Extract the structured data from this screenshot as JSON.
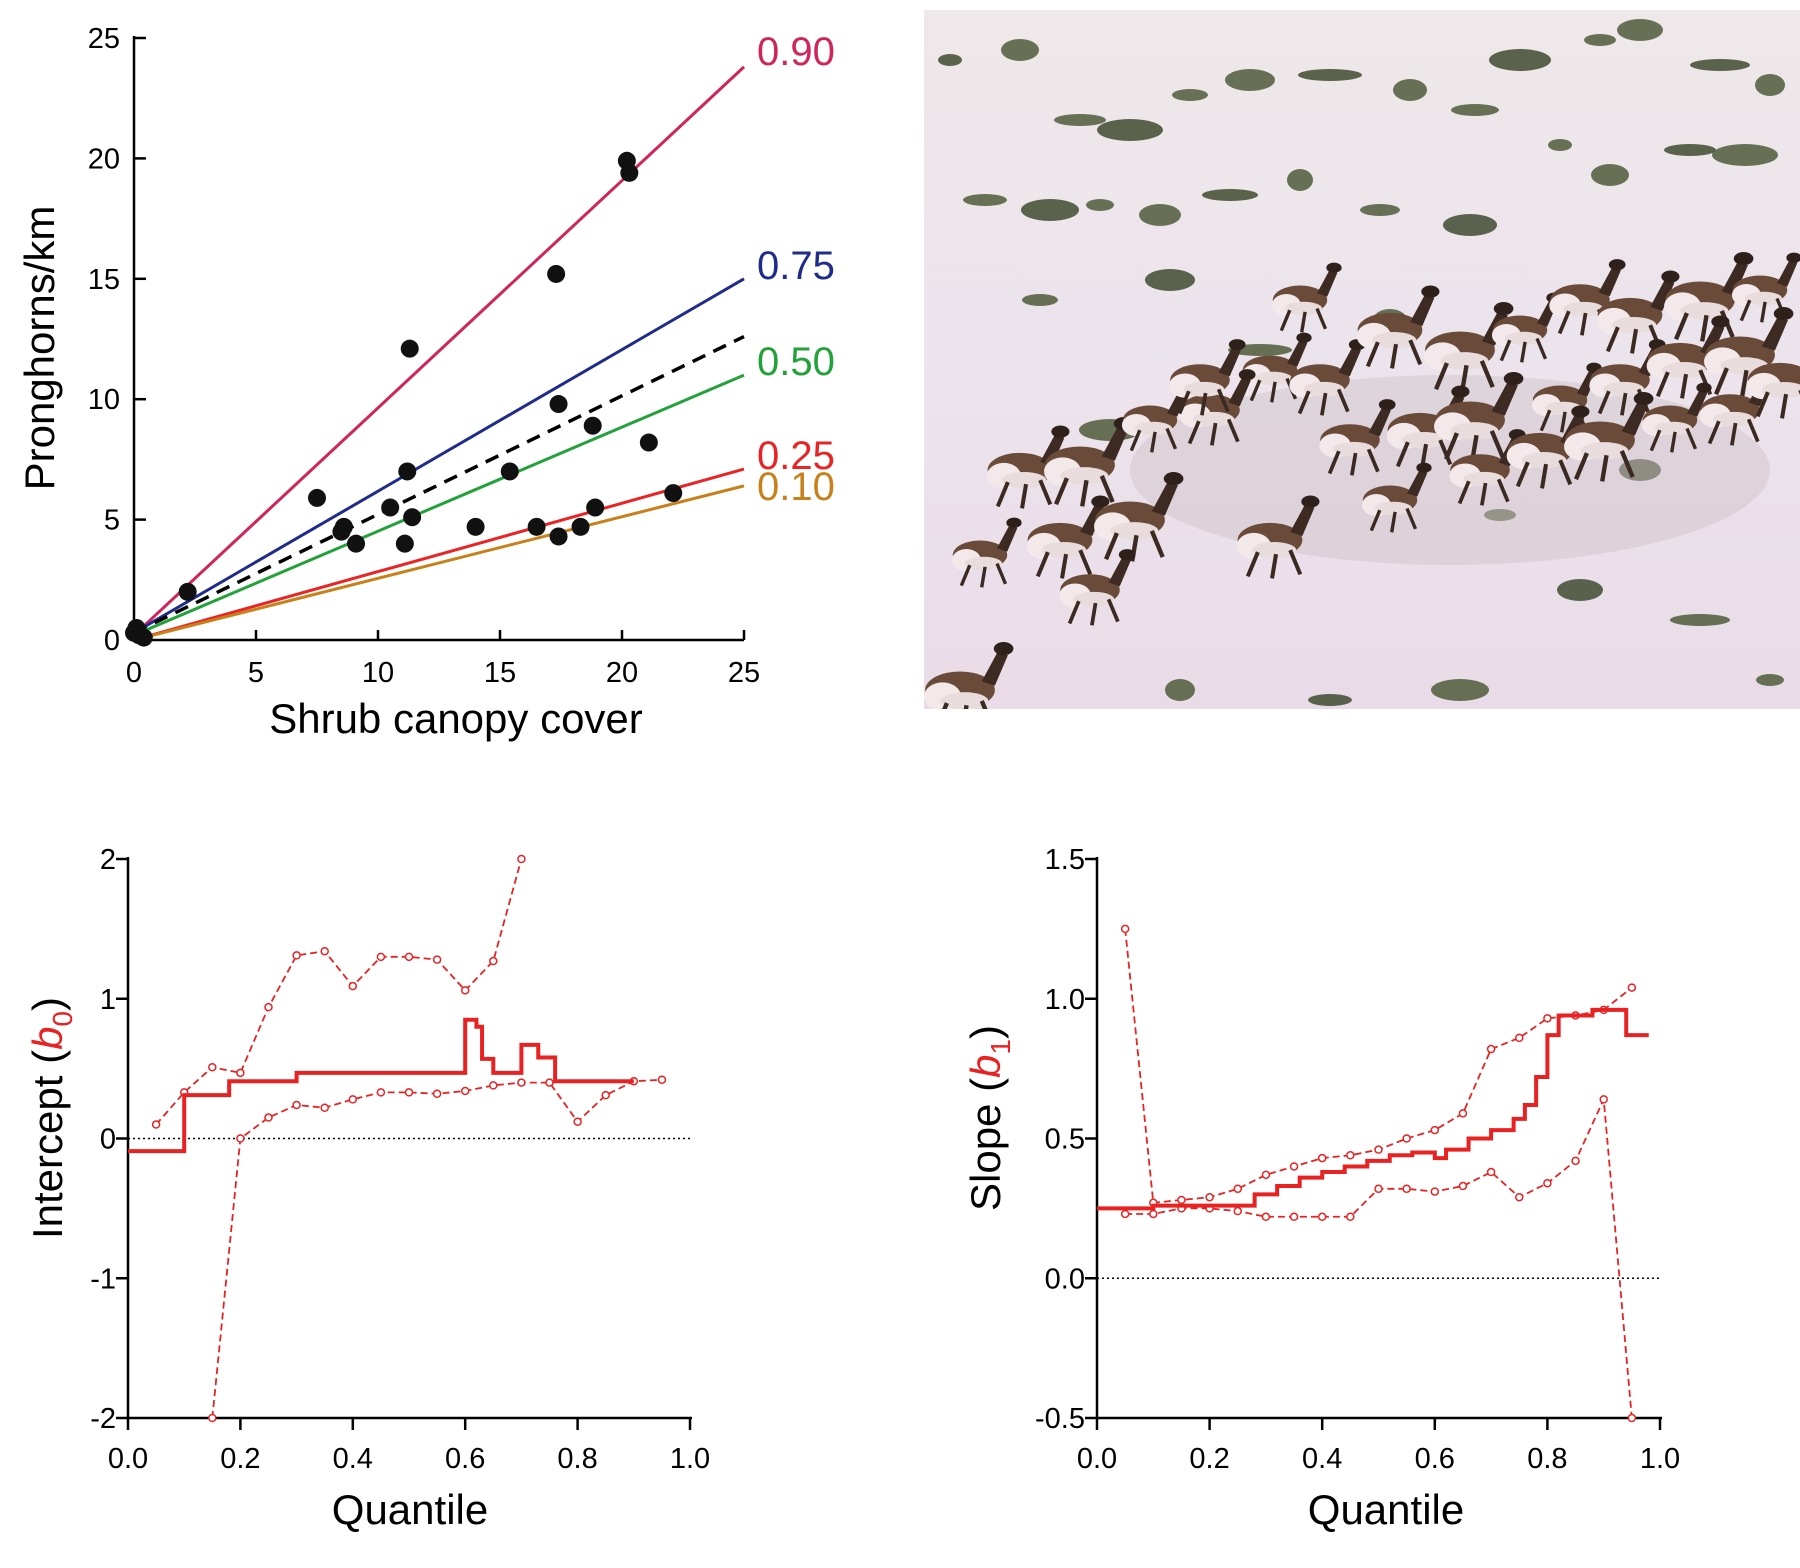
{
  "chart_data": [
    {
      "type": "scatter",
      "xlabel": "Shrub canopy cover",
      "ylabel": "Pronghorns/km",
      "xlim": [
        0,
        25
      ],
      "ylim": [
        0,
        25
      ],
      "xticks": [
        0,
        5,
        10,
        15,
        20,
        25
      ],
      "yticks": [
        0,
        5,
        10,
        15,
        20,
        25
      ],
      "points": [
        [
          0,
          0.3
        ],
        [
          0.1,
          0.5
        ],
        [
          0.2,
          0.2
        ],
        [
          0.4,
          0.1
        ],
        [
          2.2,
          2.0
        ],
        [
          7.5,
          5.9
        ],
        [
          8.5,
          4.5
        ],
        [
          8.6,
          4.7
        ],
        [
          9.1,
          4.0
        ],
        [
          10.5,
          5.5
        ],
        [
          11.1,
          4.0
        ],
        [
          11.2,
          7.0
        ],
        [
          11.3,
          12.1
        ],
        [
          11.4,
          5.1
        ],
        [
          14.0,
          4.7
        ],
        [
          15.4,
          7.0
        ],
        [
          16.5,
          4.7
        ],
        [
          17.3,
          15.2
        ],
        [
          17.4,
          4.3
        ],
        [
          17.4,
          9.8
        ],
        [
          18.3,
          4.7
        ],
        [
          18.8,
          8.9
        ],
        [
          18.9,
          5.5
        ],
        [
          20.2,
          19.9
        ],
        [
          20.3,
          19.4
        ],
        [
          21.1,
          8.2
        ],
        [
          22.1,
          6.1
        ]
      ],
      "fits": [
        {
          "name": "0.90",
          "color": "#d0245a",
          "line": [
            [
              0,
              0.2
            ],
            [
              25,
              23.8
            ]
          ]
        },
        {
          "name": "0.75",
          "color": "#1f2c8c",
          "line": [
            [
              0,
              0.3
            ],
            [
              25,
              15.0
            ]
          ]
        },
        {
          "name": "",
          "color": "#000000",
          "dashed": true,
          "line": [
            [
              0,
              0.3
            ],
            [
              25,
              12.6
            ]
          ]
        },
        {
          "name": "0.50",
          "color": "#23a23a",
          "line": [
            [
              0,
              0.2
            ],
            [
              25,
              11.0
            ]
          ]
        },
        {
          "name": "0.25",
          "color": "#ea2424",
          "line": [
            [
              0,
              0.0
            ],
            [
              25,
              7.1
            ]
          ]
        },
        {
          "name": "0.10",
          "color": "#c8811a",
          "line": [
            [
              0,
              0.0
            ],
            [
              25,
              6.4
            ]
          ]
        }
      ]
    },
    {
      "type": "line",
      "xlabel": "Quantile",
      "ylabel": "Intercept (b0)",
      "ylabel_parts": [
        "Intercept (",
        "b",
        "0",
        ")"
      ],
      "xlim": [
        0,
        1
      ],
      "ylim": [
        -2,
        2
      ],
      "xticks": [
        "0.0",
        "0.2",
        "0.4",
        "0.6",
        "0.8",
        "1.0"
      ],
      "yticks": [
        "-2",
        "-1",
        "0",
        "1",
        "2"
      ],
      "estimate": [
        [
          0.0,
          -0.09
        ],
        [
          0.1,
          -0.09
        ],
        [
          0.1,
          0.31
        ],
        [
          0.18,
          0.31
        ],
        [
          0.18,
          0.41
        ],
        [
          0.3,
          0.41
        ],
        [
          0.3,
          0.47
        ],
        [
          0.6,
          0.47
        ],
        [
          0.6,
          0.85
        ],
        [
          0.62,
          0.85
        ],
        [
          0.62,
          0.8
        ],
        [
          0.63,
          0.8
        ],
        [
          0.63,
          0.57
        ],
        [
          0.65,
          0.57
        ],
        [
          0.65,
          0.47
        ],
        [
          0.7,
          0.47
        ],
        [
          0.7,
          0.67
        ],
        [
          0.73,
          0.67
        ],
        [
          0.73,
          0.58
        ],
        [
          0.76,
          0.58
        ],
        [
          0.76,
          0.41
        ],
        [
          0.9,
          0.41
        ]
      ],
      "upper_band": [
        [
          0.05,
          0.1
        ],
        [
          0.1,
          0.33
        ],
        [
          0.15,
          0.51
        ],
        [
          0.2,
          0.47
        ],
        [
          0.25,
          0.94
        ],
        [
          0.3,
          1.31
        ],
        [
          0.35,
          1.34
        ],
        [
          0.4,
          1.09
        ],
        [
          0.45,
          1.3
        ],
        [
          0.5,
          1.3
        ],
        [
          0.55,
          1.28
        ],
        [
          0.6,
          1.06
        ],
        [
          0.65,
          1.27
        ],
        [
          0.7,
          2.0
        ]
      ],
      "lower_band": [
        [
          0.15,
          -2.0
        ],
        [
          0.2,
          0.0
        ],
        [
          0.25,
          0.15
        ],
        [
          0.3,
          0.24
        ],
        [
          0.35,
          0.22
        ],
        [
          0.4,
          0.28
        ],
        [
          0.45,
          0.33
        ],
        [
          0.5,
          0.33
        ],
        [
          0.55,
          0.32
        ],
        [
          0.6,
          0.34
        ],
        [
          0.65,
          0.38
        ],
        [
          0.7,
          0.4
        ],
        [
          0.75,
          0.4
        ],
        [
          0.8,
          0.12
        ],
        [
          0.85,
          0.31
        ],
        [
          0.9,
          0.41
        ],
        [
          0.95,
          0.42
        ]
      ],
      "reference_line": 0,
      "color": "#e82222"
    },
    {
      "type": "line",
      "xlabel": "Quantile",
      "ylabel": "Slope (b1)",
      "ylabel_parts": [
        "Slope (",
        "b",
        "1",
        ")"
      ],
      "xlim": [
        0,
        1
      ],
      "ylim": [
        -0.5,
        1.5
      ],
      "xticks": [
        "0.0",
        "0.2",
        "0.4",
        "0.6",
        "0.8",
        "1.0"
      ],
      "yticks": [
        "-0.5",
        "0.0",
        "0.5",
        "1.0",
        "1.5"
      ],
      "estimate": [
        [
          0.0,
          0.25
        ],
        [
          0.1,
          0.25
        ],
        [
          0.1,
          0.26
        ],
        [
          0.28,
          0.26
        ],
        [
          0.28,
          0.3
        ],
        [
          0.32,
          0.3
        ],
        [
          0.32,
          0.33
        ],
        [
          0.36,
          0.33
        ],
        [
          0.36,
          0.36
        ],
        [
          0.4,
          0.36
        ],
        [
          0.4,
          0.38
        ],
        [
          0.44,
          0.38
        ],
        [
          0.44,
          0.4
        ],
        [
          0.48,
          0.4
        ],
        [
          0.48,
          0.42
        ],
        [
          0.52,
          0.42
        ],
        [
          0.52,
          0.44
        ],
        [
          0.56,
          0.44
        ],
        [
          0.56,
          0.45
        ],
        [
          0.6,
          0.45
        ],
        [
          0.6,
          0.43
        ],
        [
          0.62,
          0.43
        ],
        [
          0.62,
          0.46
        ],
        [
          0.66,
          0.46
        ],
        [
          0.66,
          0.5
        ],
        [
          0.7,
          0.5
        ],
        [
          0.7,
          0.53
        ],
        [
          0.74,
          0.53
        ],
        [
          0.74,
          0.57
        ],
        [
          0.76,
          0.57
        ],
        [
          0.76,
          0.62
        ],
        [
          0.78,
          0.62
        ],
        [
          0.78,
          0.72
        ],
        [
          0.8,
          0.72
        ],
        [
          0.8,
          0.87
        ],
        [
          0.82,
          0.87
        ],
        [
          0.82,
          0.94
        ],
        [
          0.88,
          0.94
        ],
        [
          0.88,
          0.96
        ],
        [
          0.94,
          0.96
        ],
        [
          0.94,
          0.87
        ],
        [
          0.98,
          0.87
        ]
      ],
      "upper_band": [
        [
          0.05,
          1.25
        ],
        [
          0.1,
          0.27
        ],
        [
          0.15,
          0.28
        ],
        [
          0.2,
          0.29
        ],
        [
          0.25,
          0.32
        ],
        [
          0.3,
          0.37
        ],
        [
          0.35,
          0.4
        ],
        [
          0.4,
          0.43
        ],
        [
          0.45,
          0.44
        ],
        [
          0.5,
          0.46
        ],
        [
          0.55,
          0.5
        ],
        [
          0.6,
          0.53
        ],
        [
          0.65,
          0.59
        ],
        [
          0.7,
          0.82
        ],
        [
          0.75,
          0.86
        ],
        [
          0.8,
          0.93
        ],
        [
          0.85,
          0.94
        ],
        [
          0.9,
          0.96
        ],
        [
          0.95,
          1.04
        ]
      ],
      "lower_band": [
        [
          0.05,
          0.23
        ],
        [
          0.1,
          0.23
        ],
        [
          0.15,
          0.25
        ],
        [
          0.2,
          0.25
        ],
        [
          0.25,
          0.24
        ],
        [
          0.3,
          0.22
        ],
        [
          0.35,
          0.22
        ],
        [
          0.4,
          0.22
        ],
        [
          0.45,
          0.22
        ],
        [
          0.5,
          0.32
        ],
        [
          0.55,
          0.32
        ],
        [
          0.6,
          0.31
        ],
        [
          0.65,
          0.33
        ],
        [
          0.7,
          0.38
        ],
        [
          0.75,
          0.29
        ],
        [
          0.8,
          0.34
        ],
        [
          0.85,
          0.42
        ],
        [
          0.9,
          0.64
        ],
        [
          0.95,
          -0.5
        ]
      ],
      "reference_line": 0,
      "color": "#e82222"
    }
  ]
}
